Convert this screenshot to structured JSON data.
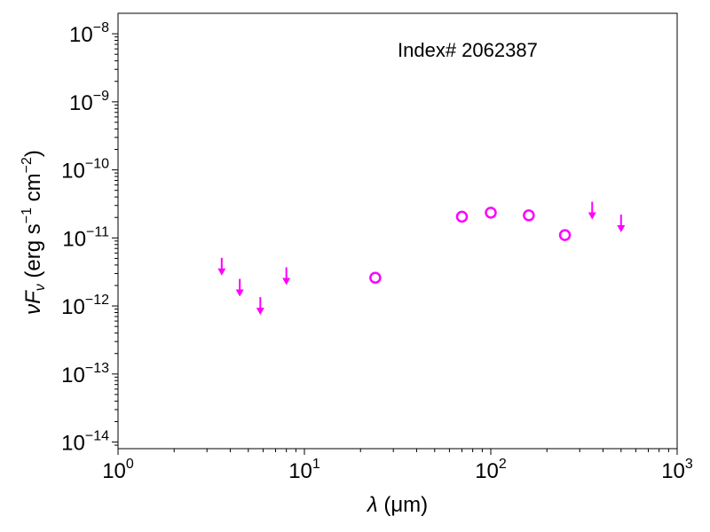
{
  "chart_data": {
    "type": "scatter",
    "annotation": "Index# 2062387",
    "xlabel": {
      "symbol": "λ",
      "unit": " (μm)"
    },
    "ylabel": {
      "main": "νF",
      "sub": "ν",
      "units": " (erg s",
      "s_exp": "−1",
      "mid": " cm",
      "cm_exp": "−2",
      "close": ")"
    },
    "x_scale": "log",
    "y_scale": "log",
    "xlim": [
      1,
      1000
    ],
    "ylim": [
      8e-15,
      2e-08
    ],
    "x_ticks": [
      {
        "value": 1,
        "base": "10",
        "exp": "0"
      },
      {
        "value": 10,
        "base": "10",
        "exp": "1"
      },
      {
        "value": 100,
        "base": "10",
        "exp": "2"
      },
      {
        "value": 1000,
        "base": "10",
        "exp": "3"
      }
    ],
    "y_ticks": [
      {
        "value": 1e-14,
        "base": "10",
        "exp": "−14"
      },
      {
        "value": 1e-13,
        "base": "10",
        "exp": "−13"
      },
      {
        "value": 1e-12,
        "base": "10",
        "exp": "−12"
      },
      {
        "value": 1e-11,
        "base": "10",
        "exp": "−11"
      },
      {
        "value": 1e-10,
        "base": "10",
        "exp": "−10"
      },
      {
        "value": 1e-09,
        "base": "10",
        "exp": "−9"
      },
      {
        "value": 1e-08,
        "base": "10",
        "exp": "−8"
      }
    ],
    "grid": false,
    "color": "#ff00ff",
    "detections": [
      {
        "x": 24,
        "y": 2.6e-12
      },
      {
        "x": 70,
        "y": 2.05e-11
      },
      {
        "x": 100,
        "y": 2.35e-11
      },
      {
        "x": 160,
        "y": 2.15e-11
      },
      {
        "x": 250,
        "y": 1.1e-11
      }
    ],
    "upper_limits": [
      {
        "x": 3.6,
        "y": 5.1e-12
      },
      {
        "x": 4.5,
        "y": 2.5e-12
      },
      {
        "x": 5.8,
        "y": 1.35e-12
      },
      {
        "x": 8.0,
        "y": 3.7e-12
      },
      {
        "x": 350,
        "y": 3.4e-11
      },
      {
        "x": 500,
        "y": 2.2e-11
      }
    ]
  }
}
